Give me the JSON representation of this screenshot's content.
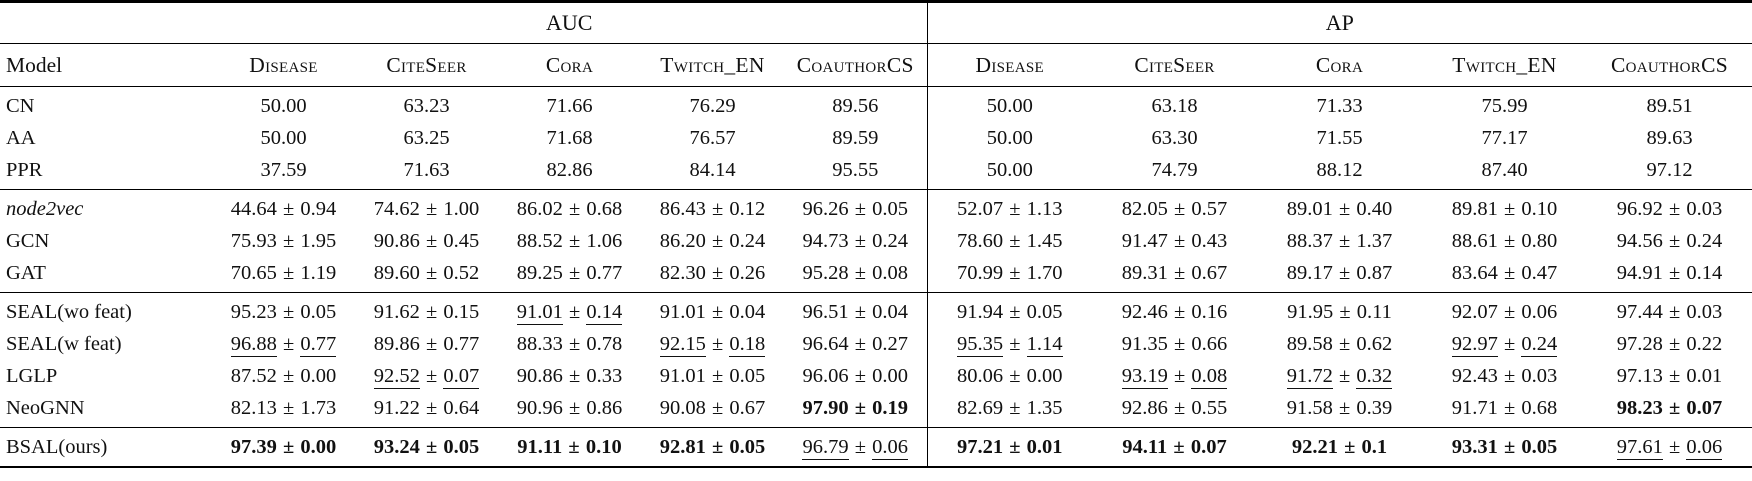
{
  "table": {
    "pm": "±",
    "header": {
      "model_label": "Model",
      "auc_label": "AUC",
      "ap_label": "AP"
    },
    "dataset_headers": [
      "Disease",
      "CiteSeer",
      "Cora",
      "Twitch_EN",
      "CoauthorCS"
    ],
    "groups": [
      {
        "name": "heuristic-methods",
        "rows": [
          {
            "model": "CN",
            "italic": false,
            "auc": [
              {
                "m": "50.00"
              },
              {
                "m": "63.23"
              },
              {
                "m": "71.66"
              },
              {
                "m": "76.29"
              },
              {
                "m": "89.56"
              }
            ],
            "ap": [
              {
                "m": "50.00"
              },
              {
                "m": "63.18"
              },
              {
                "m": "71.33"
              },
              {
                "m": "75.99"
              },
              {
                "m": "89.51"
              }
            ]
          },
          {
            "model": "AA",
            "italic": false,
            "auc": [
              {
                "m": "50.00"
              },
              {
                "m": "63.25"
              },
              {
                "m": "71.68"
              },
              {
                "m": "76.57"
              },
              {
                "m": "89.59"
              }
            ],
            "ap": [
              {
                "m": "50.00"
              },
              {
                "m": "63.30"
              },
              {
                "m": "71.55"
              },
              {
                "m": "77.17"
              },
              {
                "m": "89.63"
              }
            ]
          },
          {
            "model": "PPR",
            "italic": false,
            "auc": [
              {
                "m": "37.59"
              },
              {
                "m": "71.63"
              },
              {
                "m": "82.86"
              },
              {
                "m": "84.14"
              },
              {
                "m": "95.55"
              }
            ],
            "ap": [
              {
                "m": "50.00"
              },
              {
                "m": "74.79"
              },
              {
                "m": "88.12"
              },
              {
                "m": "87.40"
              },
              {
                "m": "97.12"
              }
            ]
          }
        ]
      },
      {
        "name": "embedding-methods",
        "rows": [
          {
            "model": "node2vec",
            "italic": true,
            "auc": [
              {
                "m": "44.64",
                "s": "0.94"
              },
              {
                "m": "74.62",
                "s": "1.00"
              },
              {
                "m": "86.02",
                "s": "0.68"
              },
              {
                "m": "86.43",
                "s": "0.12"
              },
              {
                "m": "96.26",
                "s": "0.05"
              }
            ],
            "ap": [
              {
                "m": "52.07",
                "s": "1.13"
              },
              {
                "m": "82.05",
                "s": "0.57"
              },
              {
                "m": "89.01",
                "s": "0.40"
              },
              {
                "m": "89.81",
                "s": "0.10"
              },
              {
                "m": "96.92",
                "s": "0.03"
              }
            ]
          },
          {
            "model": "GCN",
            "italic": false,
            "auc": [
              {
                "m": "75.93",
                "s": "1.95"
              },
              {
                "m": "90.86",
                "s": "0.45"
              },
              {
                "m": "88.52",
                "s": "1.06"
              },
              {
                "m": "86.20",
                "s": "0.24"
              },
              {
                "m": "94.73",
                "s": "0.24"
              }
            ],
            "ap": [
              {
                "m": "78.60",
                "s": "1.45"
              },
              {
                "m": "91.47",
                "s": "0.43"
              },
              {
                "m": "88.37",
                "s": "1.37"
              },
              {
                "m": "88.61",
                "s": "0.80"
              },
              {
                "m": "94.56",
                "s": "0.24"
              }
            ]
          },
          {
            "model": "GAT",
            "italic": false,
            "auc": [
              {
                "m": "70.65",
                "s": "1.19"
              },
              {
                "m": "89.60",
                "s": "0.52"
              },
              {
                "m": "89.25",
                "s": "0.77"
              },
              {
                "m": "82.30",
                "s": "0.26"
              },
              {
                "m": "95.28",
                "s": "0.08"
              }
            ],
            "ap": [
              {
                "m": "70.99",
                "s": "1.70"
              },
              {
                "m": "89.31",
                "s": "0.67"
              },
              {
                "m": "89.17",
                "s": "0.87"
              },
              {
                "m": "83.64",
                "s": "0.47"
              },
              {
                "m": "94.91",
                "s": "0.14"
              }
            ]
          }
        ]
      },
      {
        "name": "subgraph-methods",
        "rows": [
          {
            "model": "SEAL(wo feat)",
            "italic": false,
            "auc": [
              {
                "m": "95.23",
                "s": "0.05"
              },
              {
                "m": "91.62",
                "s": "0.15"
              },
              {
                "m": "91.01",
                "s": "0.14",
                "style": "u"
              },
              {
                "m": "91.01",
                "s": "0.04"
              },
              {
                "m": "96.51",
                "s": "0.04"
              }
            ],
            "ap": [
              {
                "m": "91.94",
                "s": "0.05"
              },
              {
                "m": "92.46",
                "s": "0.16"
              },
              {
                "m": "91.95",
                "s": "0.11"
              },
              {
                "m": "92.07",
                "s": "0.06"
              },
              {
                "m": "97.44",
                "s": "0.03"
              }
            ]
          },
          {
            "model": "SEAL(w feat)",
            "italic": false,
            "auc": [
              {
                "m": "96.88",
                "s": "0.77",
                "style": "u"
              },
              {
                "m": "89.86",
                "s": "0.77"
              },
              {
                "m": "88.33",
                "s": "0.78"
              },
              {
                "m": "92.15",
                "s": "0.18",
                "style": "u"
              },
              {
                "m": "96.64",
                "s": "0.27"
              }
            ],
            "ap": [
              {
                "m": "95.35",
                "s": "1.14",
                "style": "u"
              },
              {
                "m": "91.35",
                "s": "0.66"
              },
              {
                "m": "89.58",
                "s": "0.62"
              },
              {
                "m": "92.97",
                "s": "0.24",
                "style": "u"
              },
              {
                "m": "97.28",
                "s": "0.22"
              }
            ]
          },
          {
            "model": "LGLP",
            "italic": false,
            "auc": [
              {
                "m": "87.52",
                "s": "0.00"
              },
              {
                "m": "92.52",
                "s": "0.07",
                "style": "u"
              },
              {
                "m": "90.86",
                "s": "0.33"
              },
              {
                "m": "91.01",
                "s": "0.05"
              },
              {
                "m": "96.06",
                "s": "0.00"
              }
            ],
            "ap": [
              {
                "m": "80.06",
                "s": "0.00"
              },
              {
                "m": "93.19",
                "s": "0.08",
                "style": "u"
              },
              {
                "m": "91.72",
                "s": "0.32",
                "style": "u"
              },
              {
                "m": "92.43",
                "s": "0.03"
              },
              {
                "m": "97.13",
                "s": "0.01"
              }
            ]
          },
          {
            "model": "NeoGNN",
            "italic": false,
            "auc": [
              {
                "m": "82.13",
                "s": "1.73"
              },
              {
                "m": "91.22",
                "s": "0.64"
              },
              {
                "m": "90.96",
                "s": "0.86"
              },
              {
                "m": "90.08",
                "s": "0.67"
              },
              {
                "m": "97.90",
                "s": "0.19",
                "style": "b"
              }
            ],
            "ap": [
              {
                "m": "82.69",
                "s": "1.35"
              },
              {
                "m": "92.86",
                "s": "0.55"
              },
              {
                "m": "91.58",
                "s": "0.39"
              },
              {
                "m": "91.71",
                "s": "0.68"
              },
              {
                "m": "98.23",
                "s": "0.07",
                "style": "b"
              }
            ]
          }
        ]
      },
      {
        "name": "ours",
        "rows": [
          {
            "model": "BSAL(ours)",
            "italic": false,
            "auc": [
              {
                "m": "97.39",
                "s": "0.00",
                "style": "b"
              },
              {
                "m": "93.24",
                "s": "0.05",
                "style": "b"
              },
              {
                "m": "91.11",
                "s": "0.10",
                "style": "b"
              },
              {
                "m": "92.81",
                "s": "0.05",
                "style": "b"
              },
              {
                "m": "96.79",
                "s": "0.06",
                "style": "u"
              }
            ],
            "ap": [
              {
                "m": "97.21",
                "s": "0.01",
                "style": "b"
              },
              {
                "m": "94.11",
                "s": "0.07",
                "style": "b"
              },
              {
                "m": "92.21",
                "s": "0.1",
                "style": "b"
              },
              {
                "m": "93.31",
                "s": "0.05",
                "style": "b"
              },
              {
                "m": "97.61",
                "s": "0.06",
                "style": "u"
              }
            ]
          }
        ]
      }
    ]
  }
}
